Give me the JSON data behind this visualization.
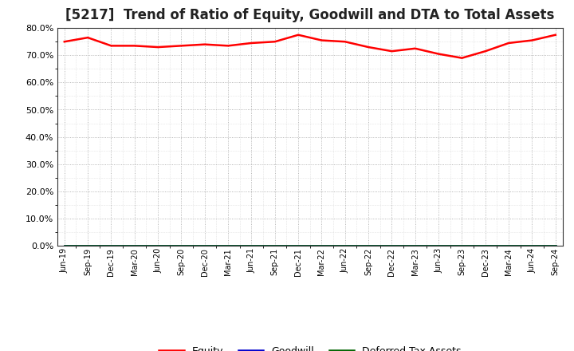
{
  "title": "[5217]  Trend of Ratio of Equity, Goodwill and DTA to Total Assets",
  "x_labels": [
    "Jun-19",
    "Sep-19",
    "Dec-19",
    "Mar-20",
    "Jun-20",
    "Sep-20",
    "Dec-20",
    "Mar-21",
    "Jun-21",
    "Sep-21",
    "Dec-21",
    "Mar-22",
    "Jun-22",
    "Sep-22",
    "Dec-22",
    "Mar-23",
    "Jun-23",
    "Sep-23",
    "Dec-23",
    "Mar-24",
    "Jun-24",
    "Sep-24"
  ],
  "equity": [
    75.0,
    76.5,
    73.5,
    73.5,
    73.0,
    73.5,
    74.0,
    73.5,
    74.5,
    75.0,
    77.5,
    75.5,
    75.0,
    73.0,
    71.5,
    72.5,
    70.5,
    69.0,
    71.5,
    74.5,
    75.5,
    77.5
  ],
  "goodwill": [
    0,
    0,
    0,
    0,
    0,
    0,
    0,
    0,
    0,
    0,
    0,
    0,
    0,
    0,
    0,
    0,
    0,
    0,
    0,
    0,
    0,
    0
  ],
  "dta": [
    0,
    0,
    0,
    0,
    0,
    0,
    0,
    0,
    0,
    0,
    0,
    0,
    0,
    0,
    0,
    0,
    0,
    0,
    0,
    0,
    0,
    0
  ],
  "equity_color": "#FF0000",
  "goodwill_color": "#0000CD",
  "dta_color": "#006400",
  "ylim": [
    0,
    80
  ],
  "yticks": [
    0,
    10,
    20,
    30,
    40,
    50,
    60,
    70,
    80
  ],
  "bg_color": "#FFFFFF",
  "plot_bg_color": "#FFFFFF",
  "grid_color": "#999999",
  "title_fontsize": 12,
  "legend_labels": [
    "Equity",
    "Goodwill",
    "Deferred Tax Assets"
  ]
}
